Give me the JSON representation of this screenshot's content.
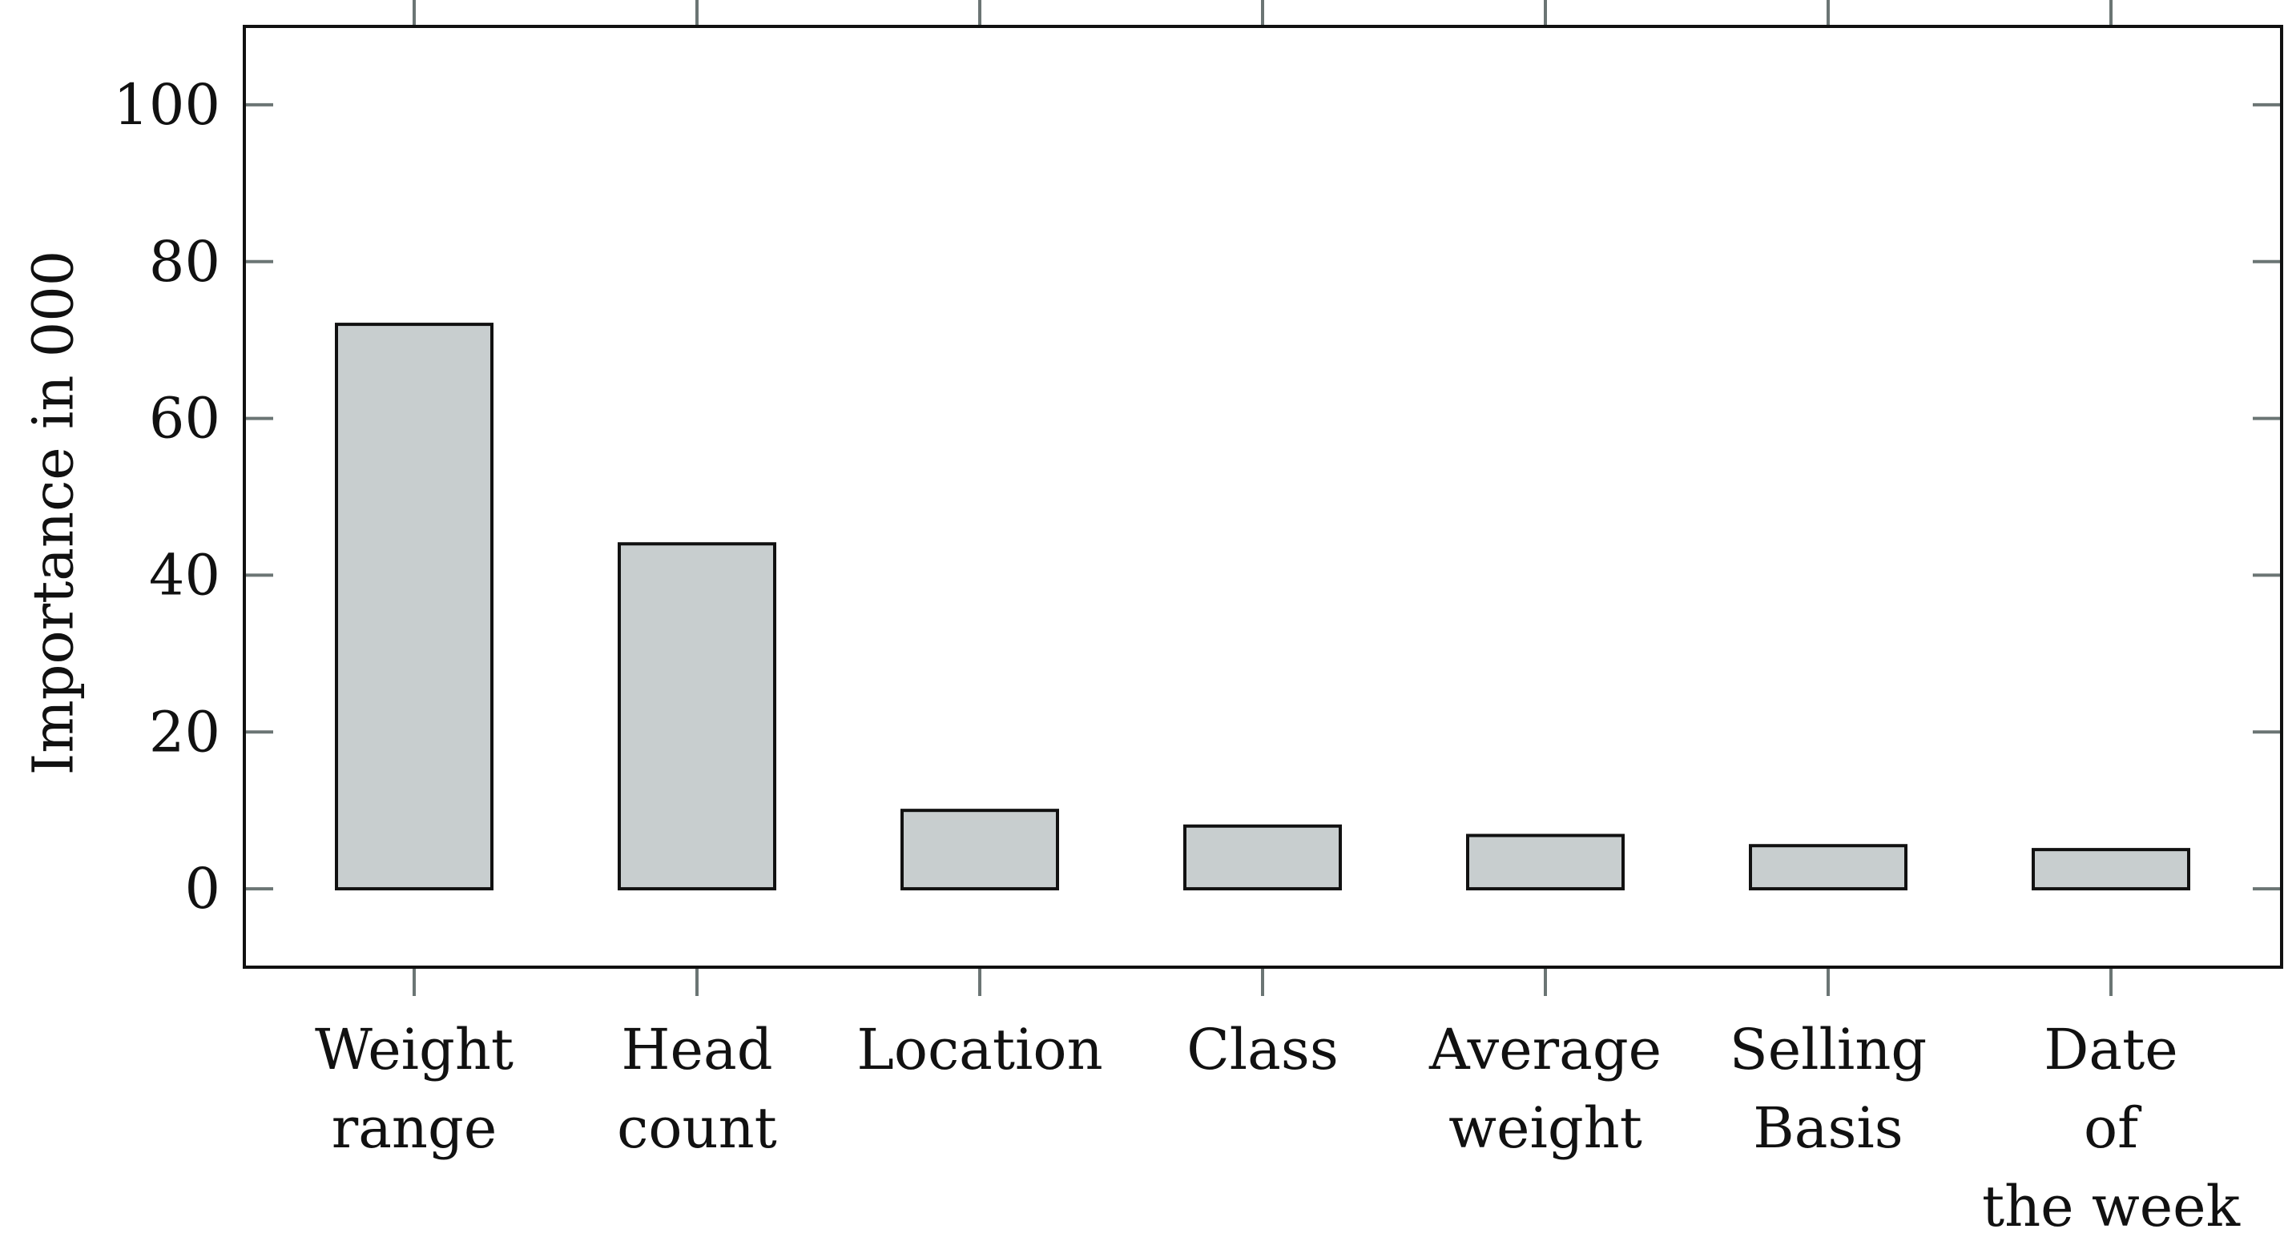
{
  "chart_data": {
    "type": "bar",
    "title": "",
    "xlabel": "",
    "ylabel": "Importance in 000",
    "ylim": [
      -10,
      110
    ],
    "yticks": [
      0,
      20,
      40,
      60,
      80,
      100
    ],
    "grid": false,
    "legend": "none",
    "categories": [
      [
        "Weight",
        "range"
      ],
      [
        "Head",
        "count"
      ],
      [
        "Location"
      ],
      [
        "Class"
      ],
      [
        "Average",
        "weight"
      ],
      [
        "Selling",
        "Basis"
      ],
      [
        "Date",
        "of",
        "the week"
      ]
    ],
    "values": [
      72,
      44,
      10,
      8,
      6.8,
      5.5,
      5
    ],
    "colors": {
      "bar_fill": "#c8cecf",
      "bar_stroke": "#111111",
      "tick": "#6b7574",
      "frame": "#111111"
    }
  }
}
